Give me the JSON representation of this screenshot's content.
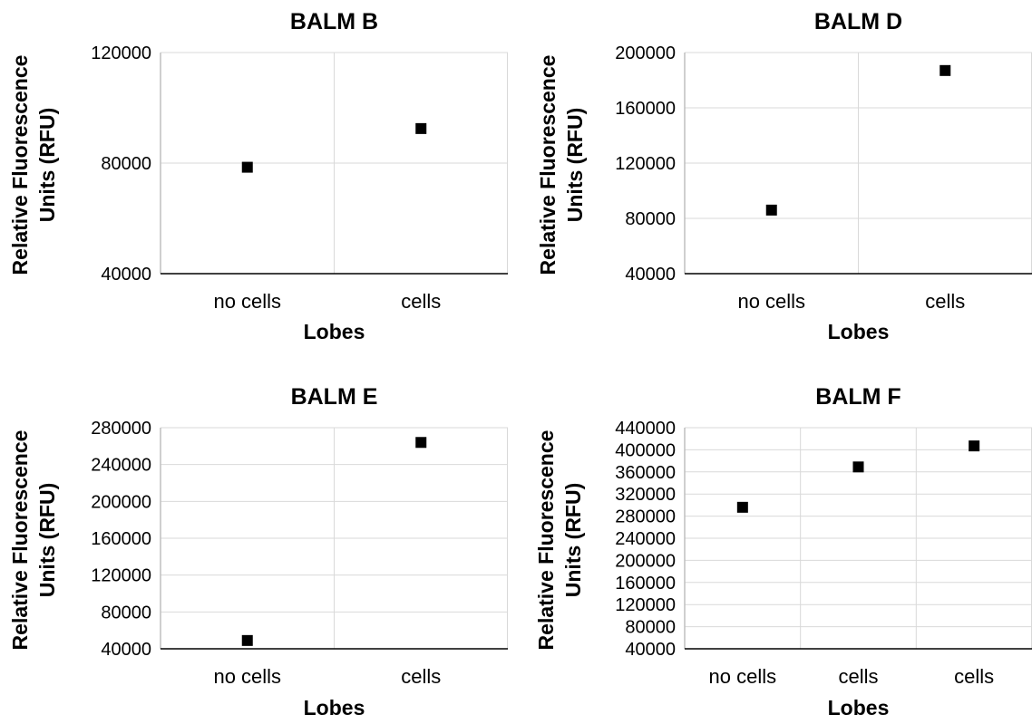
{
  "chart_data": [
    {
      "type": "scatter",
      "title": "BALM B",
      "xlabel": "Lobes",
      "ylabel_lines": [
        "Relative Fluorescence",
        "Units (RFU)"
      ],
      "categories": [
        "no cells",
        "cells"
      ],
      "values": [
        78500,
        92500
      ],
      "ylim": [
        40000,
        120000
      ],
      "yticks": [
        40000,
        80000,
        120000
      ],
      "grid": true,
      "marker_color": "#000000"
    },
    {
      "type": "scatter",
      "title": "BALM D",
      "xlabel": "Lobes",
      "ylabel_lines": [
        "Relative Fluorescence",
        "Units (RFU)"
      ],
      "categories": [
        "no cells",
        "cells"
      ],
      "values": [
        86000,
        187000
      ],
      "ylim": [
        40000,
        200000
      ],
      "yticks": [
        40000,
        80000,
        120000,
        160000,
        200000
      ],
      "grid": true,
      "marker_color": "#000000"
    },
    {
      "type": "scatter",
      "title": "BALM E",
      "xlabel": "Lobes",
      "ylabel_lines": [
        "Relative Fluorescence",
        "Units (RFU)"
      ],
      "categories": [
        "no cells",
        "cells"
      ],
      "values": [
        49000,
        264000
      ],
      "ylim": [
        40000,
        280000
      ],
      "yticks": [
        40000,
        80000,
        120000,
        160000,
        200000,
        240000,
        280000
      ],
      "grid": true,
      "marker_color": "#000000"
    },
    {
      "type": "scatter",
      "title": "BALM F",
      "xlabel": "Lobes",
      "ylabel_lines": [
        "Relative Fluorescence",
        "Units (RFU)"
      ],
      "categories": [
        "no cells",
        "cells",
        "cells"
      ],
      "values": [
        296000,
        369000,
        407000
      ],
      "ylim": [
        40000,
        440000
      ],
      "yticks": [
        40000,
        80000,
        120000,
        160000,
        200000,
        240000,
        280000,
        320000,
        360000,
        400000,
        440000
      ],
      "grid": true,
      "marker_color": "#000000"
    }
  ]
}
